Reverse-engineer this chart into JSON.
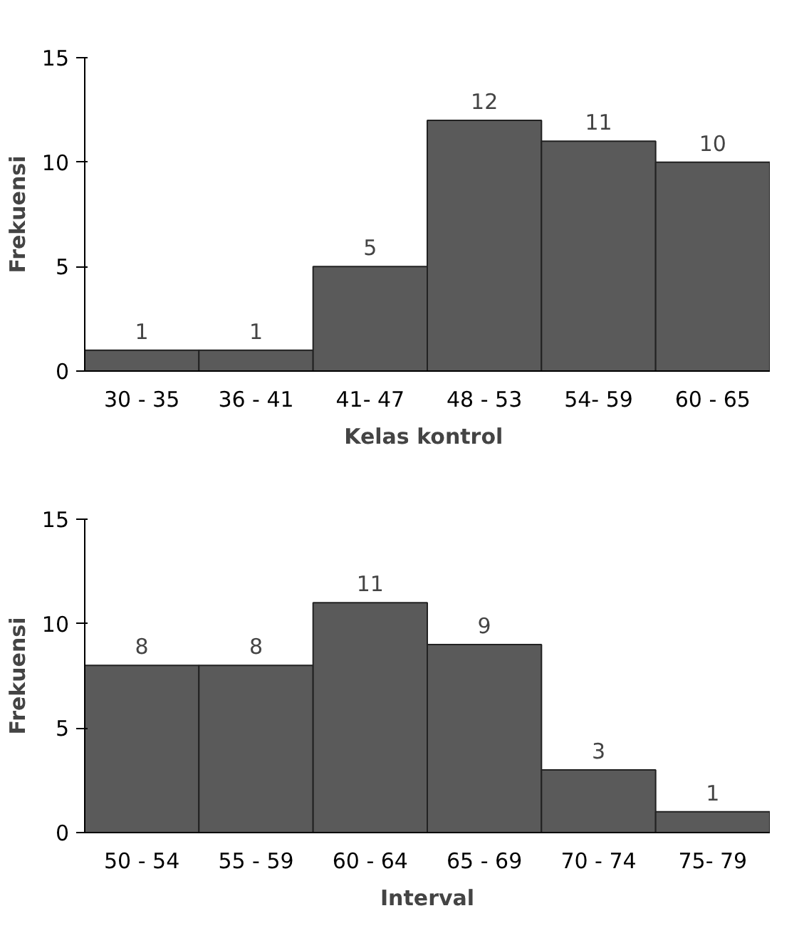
{
  "chart_data": [
    {
      "type": "bar",
      "xlabel": "Kelas  kontrol",
      "ylabel": "Frekuensi",
      "categories": [
        "30 - 35",
        "36 - 41",
        "41- 47",
        "48 - 53",
        "54- 59",
        "60 - 65"
      ],
      "values": [
        1,
        1,
        5,
        12,
        11,
        10
      ],
      "color": "#5a5a5a",
      "ylim": [
        0,
        15
      ],
      "yticks": [
        0,
        5,
        10,
        15
      ],
      "data_labels": true,
      "grid": false
    },
    {
      "type": "bar",
      "xlabel": "Interval",
      "ylabel": "Frekuensi",
      "categories": [
        "50 - 54",
        "55 - 59",
        "60 - 64",
        "65 - 69",
        "70 - 74",
        "75- 79"
      ],
      "values": [
        8,
        8,
        11,
        9,
        3,
        1
      ],
      "color": "#5a5a5a",
      "ylim": [
        0,
        15
      ],
      "yticks": [
        0,
        5,
        10,
        15
      ],
      "data_labels": true,
      "grid": false
    }
  ]
}
